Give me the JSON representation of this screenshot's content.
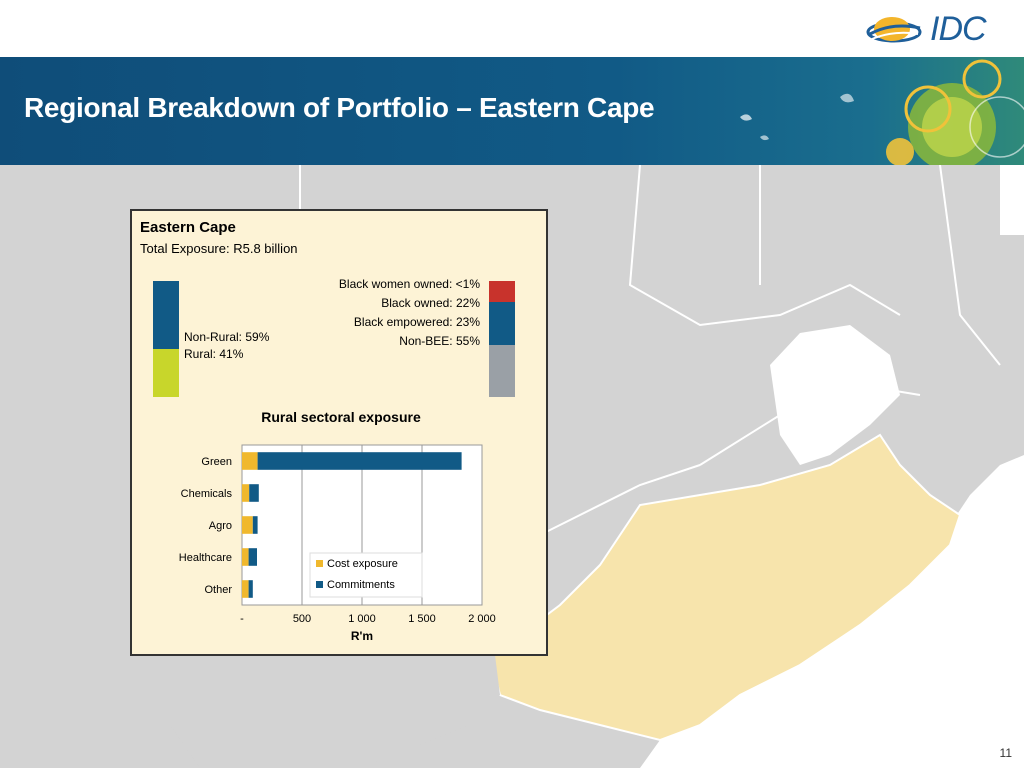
{
  "header": {
    "title": "Regional Breakdown of Portfolio – Eastern Cape",
    "logo_text": "IDC",
    "band_color": "#115a86"
  },
  "panel": {
    "title": "Eastern Cape",
    "subtitle": "Total Exposure: R5.8 billion",
    "rural_split": {
      "items": [
        {
          "label": "Non-Rural: 59%",
          "value": 59,
          "color": "#115a86"
        },
        {
          "label": "Rural: 41%",
          "value": 41,
          "color": "#c8d62b"
        }
      ]
    },
    "bee_split": {
      "items": [
        {
          "label": "Black women owned: <1%",
          "value": 1,
          "color": "#c8332c"
        },
        {
          "label": "Black owned: 22%",
          "value": 22,
          "color": "#115a86"
        },
        {
          "label": "Black empowered: 23%",
          "value": 23,
          "color": "#115a86"
        },
        {
          "label": "Non-BEE: 55%",
          "value": 55,
          "color": "#9aa0a6"
        }
      ]
    }
  },
  "chart_data": {
    "type": "bar",
    "orientation": "horizontal",
    "stacked": true,
    "title": "Rural sectoral exposure",
    "xlabel": "R'm",
    "ylabel": "",
    "categories": [
      "Green",
      "Chemicals",
      "Agro",
      "Healthcare",
      "Other"
    ],
    "series": [
      {
        "name": "Cost exposure",
        "color": "#f0b82d",
        "values": [
          130,
          60,
          90,
          55,
          55
        ]
      },
      {
        "name": "Commitments",
        "color": "#115a86",
        "values": [
          1700,
          80,
          40,
          70,
          35
        ]
      }
    ],
    "xlim": [
      0,
      2000
    ],
    "xticks": [
      0,
      500,
      1000,
      1500,
      2000
    ],
    "xtick_labels": [
      "-",
      "500",
      "1 000",
      "1 500",
      "2 000"
    ],
    "grid": "vertical",
    "legend": "inside-bottom-right"
  },
  "map": {
    "land_color": "#d3d3d3",
    "highlight_color": "#f7e4ac",
    "border_color": "#ffffff"
  },
  "footer": {
    "page_number": "11"
  }
}
